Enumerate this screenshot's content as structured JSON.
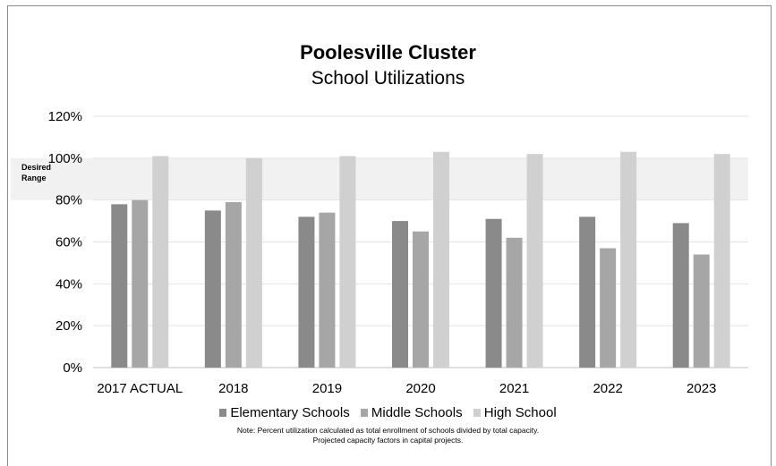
{
  "chart_data": {
    "type": "bar",
    "title": "Poolesville Cluster",
    "subtitle": "School Utilizations",
    "categories": [
      "2017 ACTUAL",
      "2018",
      "2019",
      "2020",
      "2021",
      "2022",
      "2023"
    ],
    "series": [
      {
        "name": "Elementary Schools",
        "values": [
          78,
          75,
          72,
          70,
          71,
          72,
          69
        ],
        "color": "#8a8a8a"
      },
      {
        "name": "Middle Schools",
        "values": [
          80,
          79,
          74,
          65,
          62,
          57,
          54
        ],
        "color": "#a6a6a6"
      },
      {
        "name": "High School",
        "values": [
          101,
          100,
          101,
          103,
          102,
          103,
          102
        ],
        "color": "#d0d0d0"
      }
    ],
    "ylim": [
      0,
      120
    ],
    "yticks": [
      "0%",
      "20%",
      "40%",
      "60%",
      "80%",
      "100%",
      "120%"
    ],
    "desired_range": {
      "label_line1": "Desired",
      "label_line2": "Range",
      "min": 80,
      "max": 100
    },
    "grid": true,
    "legend": "bottom"
  },
  "note": {
    "line1": "Note:  Percent utilization calculated as total enrollment of schools divided by total capacity.",
    "line2": "Projected capacity factors in capital projects."
  }
}
